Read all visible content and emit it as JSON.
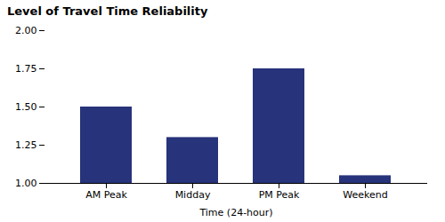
{
  "chart_data": {
    "type": "bar",
    "title": "Level of Travel Time Reliability",
    "xlabel": "Time (24-hour)",
    "categories": [
      "AM Peak",
      "Midday",
      "PM Peak",
      "Weekend"
    ],
    "values": [
      1.5,
      1.3,
      1.75,
      1.05
    ],
    "color": "#27337a",
    "ylim": [
      1.0,
      2.0
    ],
    "yticks": [
      {
        "value": 1.0,
        "label": "1.00"
      },
      1.25,
      {
        "value": 1.5,
        "label": "1.50"
      },
      1.75,
      {
        "value": 2.0,
        "label": "2.00"
      }
    ],
    "grid": false
  }
}
